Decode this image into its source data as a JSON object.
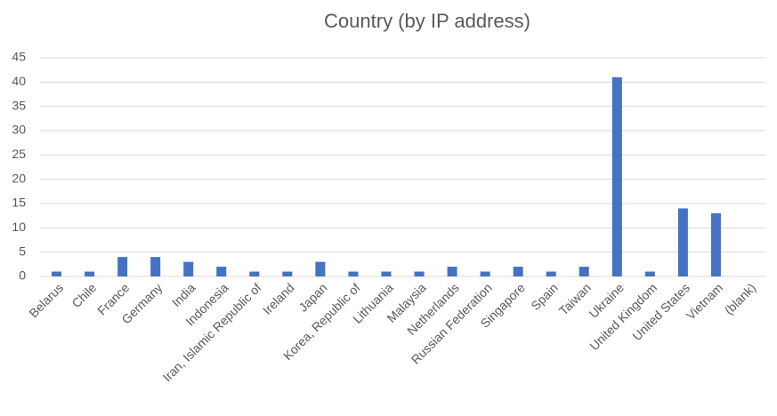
{
  "chart_data": {
    "type": "bar",
    "title": "Country (by IP address)",
    "categories": [
      "Belarus",
      "Chile",
      "France",
      "Germany",
      "India",
      "Indonesia",
      "Iran, Islamic Republic of",
      "Ireland",
      "Japan",
      "Korea, Republic of",
      "Lithuania",
      "Malaysia",
      "Netherlands",
      "Russian Federation",
      "Singapore",
      "Spain",
      "Taiwan",
      "Ukraine",
      "United Kingdom",
      "United States",
      "Vietnam",
      "(blank)"
    ],
    "values": [
      1,
      1,
      4,
      4,
      3,
      2,
      1,
      1,
      3,
      1,
      1,
      1,
      2,
      1,
      2,
      1,
      2,
      41,
      1,
      14,
      13,
      null
    ],
    "color": "#4472c4",
    "ylim": [
      0,
      45
    ],
    "yticks": [
      0,
      5,
      10,
      15,
      20,
      25,
      30,
      35,
      40,
      45
    ],
    "grid": true
  }
}
